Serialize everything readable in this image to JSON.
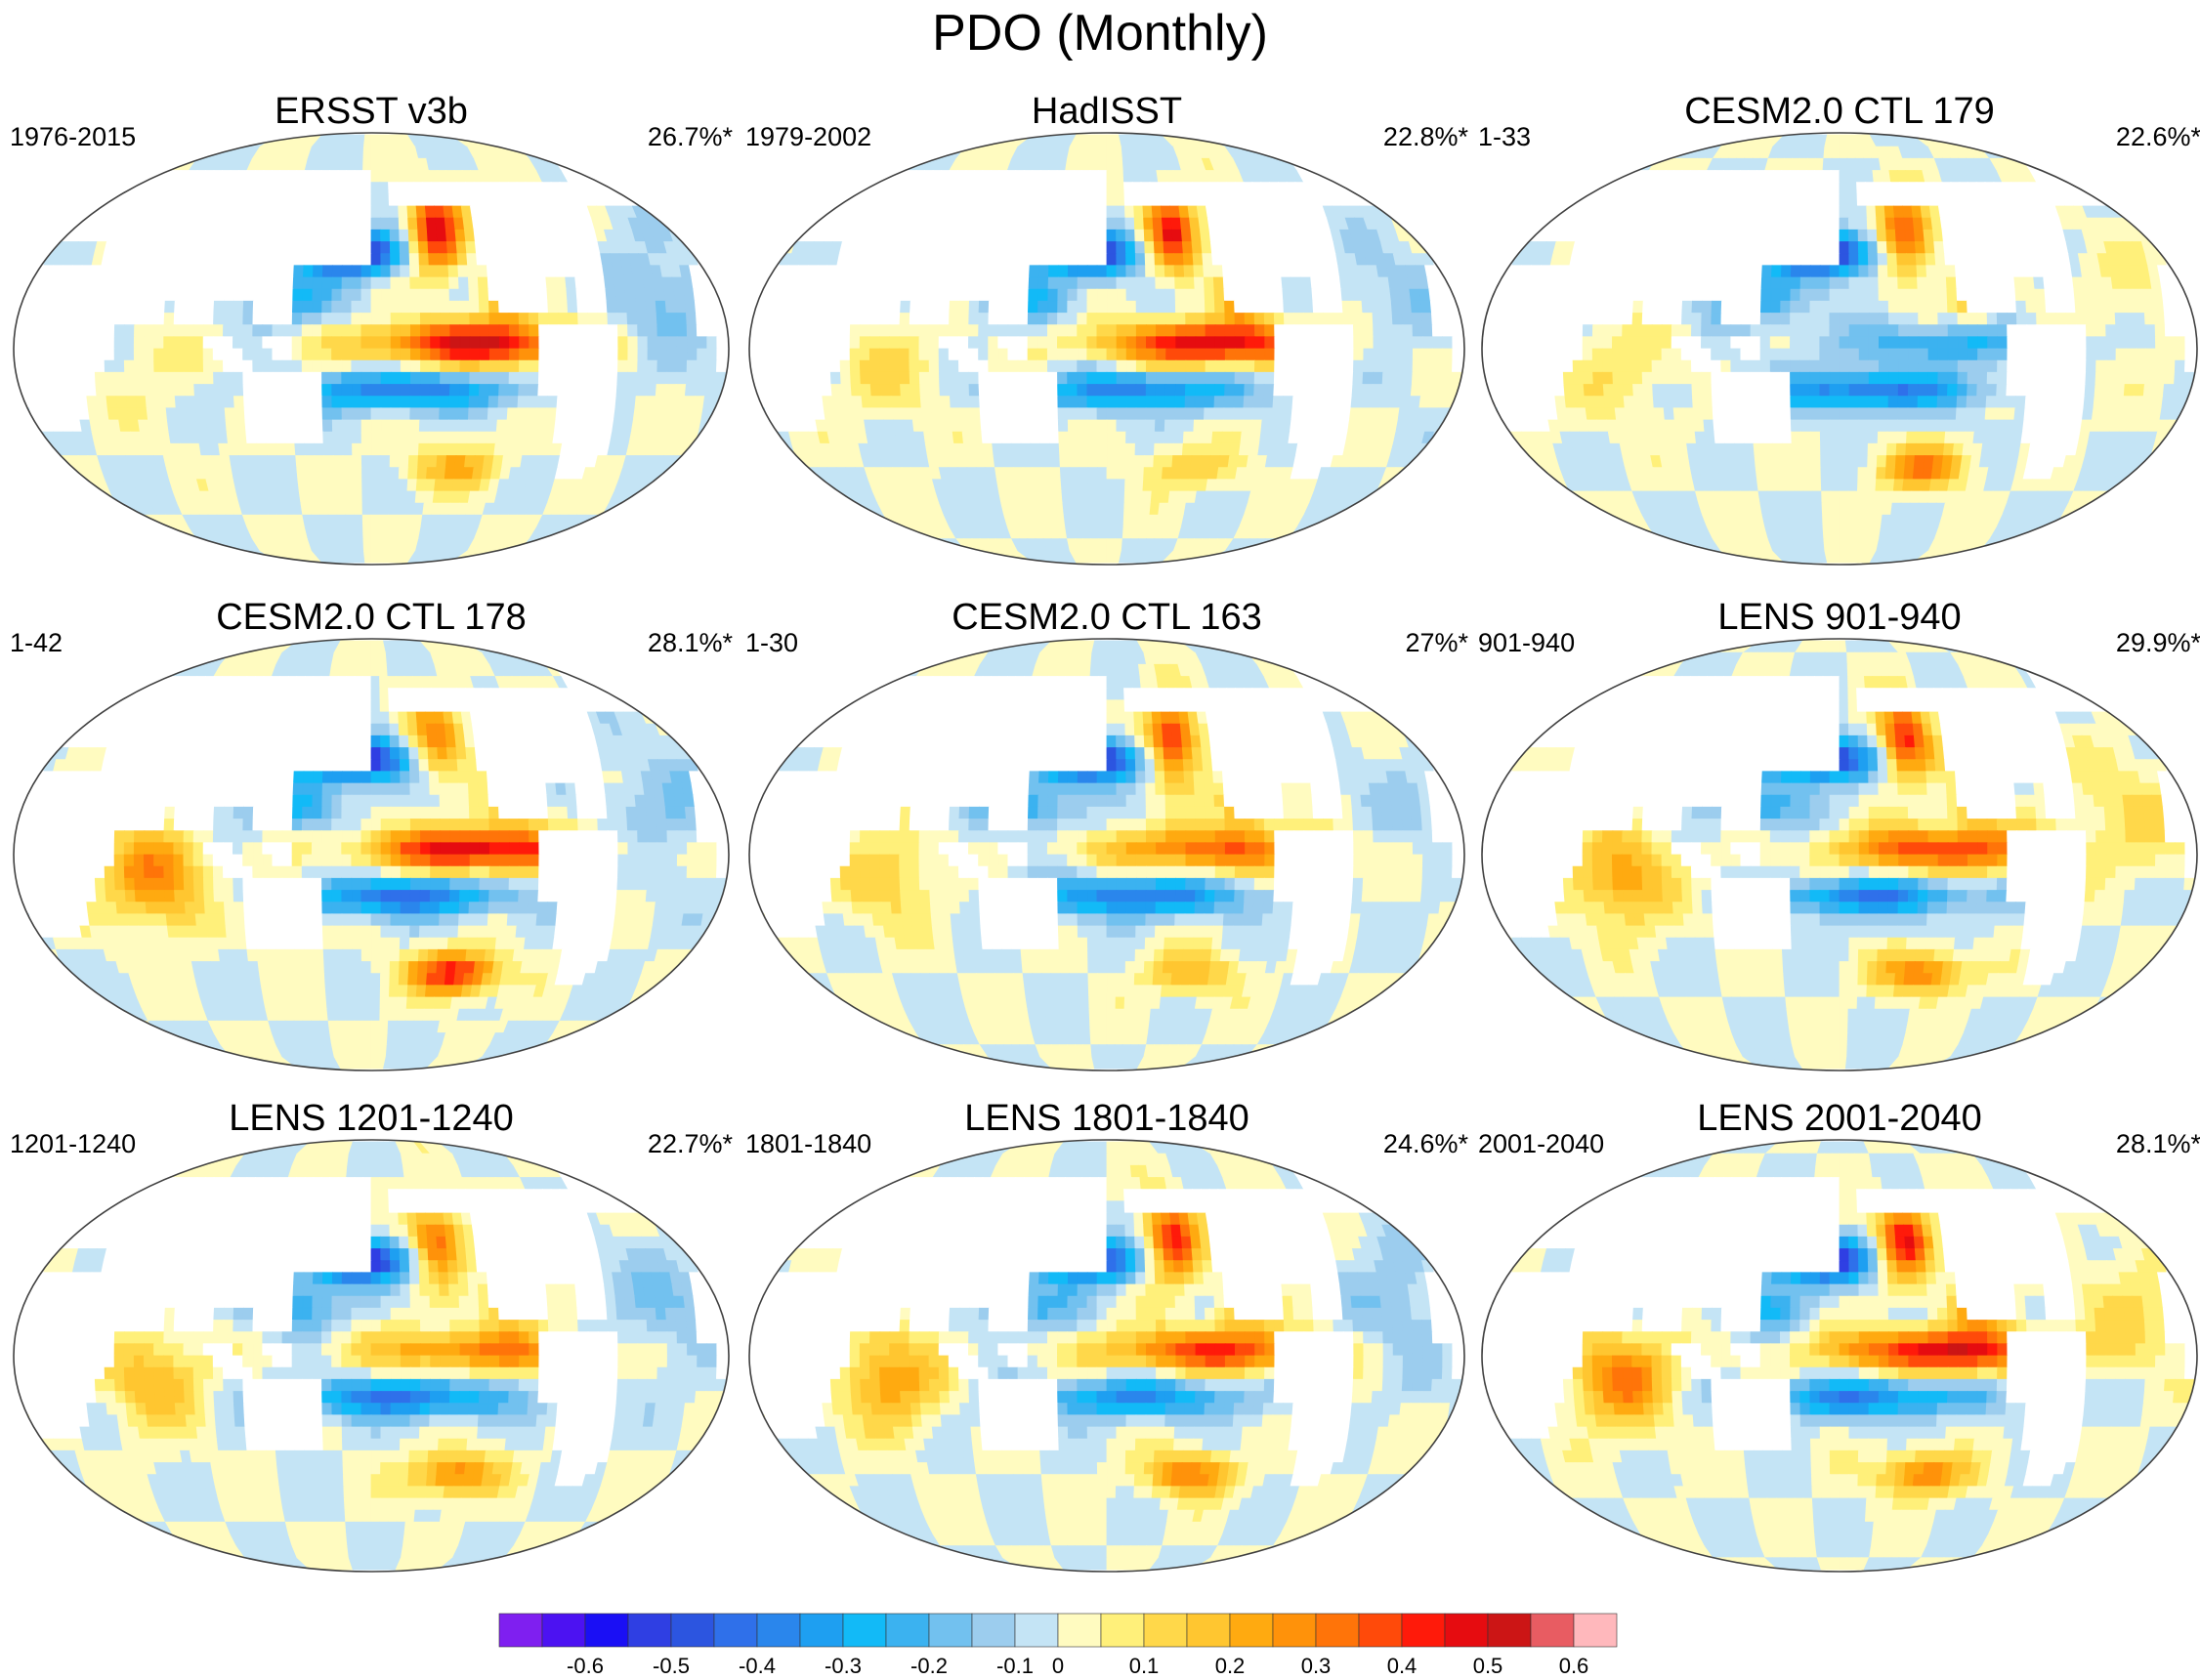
{
  "title": "PDO (Monthly)",
  "colors": {
    "land": "#ffffff",
    "coast": "#8a8a8a",
    "outline": "#404040",
    "palette": [
      "#7f1ff0",
      "#4c12f2",
      "#1a0ff5",
      "#2f3fe3",
      "#2c55e0",
      "#2f70ea",
      "#2a86ec",
      "#1e9ff1",
      "#12baf7",
      "#3bb2f0",
      "#72c1ef",
      "#9ccdee",
      "#c4e4f5",
      "#fffbc0",
      "#fff07a",
      "#ffd84a",
      "#ffc630",
      "#ffaa10",
      "#ff920a",
      "#ff7409",
      "#ff4a0a",
      "#ff1a0a",
      "#e60c10",
      "#cc1515",
      "#e85c62",
      "#ffb8bc"
    ]
  },
  "chart_data": {
    "type": "contour-map",
    "variable": "PDO regression pattern (SST)",
    "colorbar": {
      "ticks": [
        "-0.6",
        "-0.5",
        "-0.4",
        "-0.3",
        "-0.2",
        "-0.1",
        "0",
        "0.1",
        "0.2",
        "0.3",
        "0.4",
        "0.5",
        "0.6"
      ],
      "levels": [
        -0.65,
        -0.6,
        -0.55,
        -0.5,
        -0.45,
        -0.4,
        -0.35,
        -0.3,
        -0.25,
        -0.2,
        -0.15,
        -0.1,
        -0.05,
        0,
        0.05,
        0.1,
        0.15,
        0.2,
        0.25,
        0.3,
        0.35,
        0.4,
        0.45,
        0.5,
        0.55,
        0.6,
        0.65
      ]
    },
    "panels": [
      {
        "title": "ERSST v3b",
        "period": "1976-2015",
        "variance": "26.7%*",
        "npac": -0.58,
        "eqpac": 0.5,
        "coastal": 0.5,
        "ind": 0.05,
        "sopac": 0.2,
        "atl": -0.12
      },
      {
        "title": "HadISST",
        "period": "1979-2002",
        "variance": "22.8%*",
        "npac": -0.55,
        "eqpac": 0.5,
        "coastal": 0.45,
        "ind": 0.1,
        "sopac": 0.15,
        "atl": -0.08
      },
      {
        "title": "CESM2.0 CTL 179",
        "period": "1-33",
        "variance": "22.6%*",
        "npac": -0.6,
        "eqpac": -0.2,
        "coastal": 0.4,
        "ind": 0.1,
        "sopac": 0.3,
        "atl": 0.05
      },
      {
        "title": "CESM2.0 CTL 178",
        "period": "1-42",
        "variance": "28.1%*",
        "npac": -0.62,
        "eqpac": 0.5,
        "coastal": 0.3,
        "ind": 0.3,
        "sopac": 0.45,
        "atl": -0.1
      },
      {
        "title": "CESM2.0 CTL 163",
        "period": "1-30",
        "variance": "27%*",
        "npac": -0.6,
        "eqpac": 0.35,
        "coastal": 0.45,
        "ind": 0.15,
        "sopac": 0.2,
        "atl": -0.05
      },
      {
        "title": "LENS 901-940",
        "period": "901-940",
        "variance": "29.9%*",
        "npac": -0.55,
        "eqpac": 0.4,
        "coastal": 0.45,
        "ind": 0.25,
        "sopac": 0.3,
        "atl": 0.1
      },
      {
        "title": "LENS 1201-1240",
        "period": "1201-1240",
        "variance": "22.7%*",
        "npac": -0.6,
        "eqpac": 0.3,
        "coastal": 0.35,
        "ind": 0.2,
        "sopac": 0.3,
        "atl": -0.1
      },
      {
        "title": "LENS 1801-1840",
        "period": "1801-1840",
        "variance": "24.6%*",
        "npac": -0.5,
        "eqpac": 0.4,
        "coastal": 0.45,
        "ind": 0.25,
        "sopac": 0.3,
        "atl": -0.1
      },
      {
        "title": "LENS 2001-2040",
        "period": "2001-2040",
        "variance": "28.1%*",
        "npac": -0.55,
        "eqpac": 0.5,
        "coastal": 0.45,
        "ind": 0.3,
        "sopac": 0.3,
        "atl": 0.1
      }
    ]
  }
}
